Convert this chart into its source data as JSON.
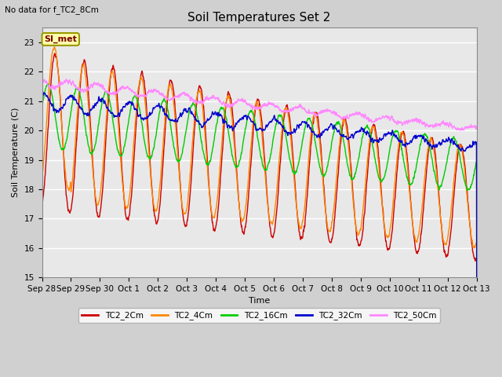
{
  "title": "Soil Temperatures Set 2",
  "xlabel": "Time",
  "ylabel": "Soil Temperature (C)",
  "top_left_text": "No data for f_TC2_8Cm",
  "annotation_text": "SI_met",
  "ylim": [
    15.0,
    23.5
  ],
  "yticks": [
    15.0,
    16.0,
    17.0,
    18.0,
    19.0,
    20.0,
    21.0,
    22.0,
    23.0
  ],
  "fig_bg_color": "#d0d0d0",
  "plot_bg_color": "#e8e8e8",
  "series": {
    "TC2_2Cm": {
      "color": "#cc0000",
      "lw": 1.0
    },
    "TC2_4Cm": {
      "color": "#ff8800",
      "lw": 1.0
    },
    "TC2_16Cm": {
      "color": "#00cc00",
      "lw": 1.0
    },
    "TC2_32Cm": {
      "color": "#0000cc",
      "lw": 1.0
    },
    "TC2_50Cm": {
      "color": "#ff88ff",
      "lw": 1.0
    }
  },
  "xtick_labels": [
    "Sep 28",
    "Sep 29",
    "Sep 30",
    "Oct 1",
    "Oct 2",
    "Oct 3",
    "Oct 4",
    "Oct 5",
    "Oct 6",
    "Oct 7",
    "Oct 8",
    "Oct 9",
    "Oct 10",
    "Oct 11",
    "Oct 12",
    "Oct 13"
  ],
  "num_days": 15,
  "pts_per_day": 144
}
